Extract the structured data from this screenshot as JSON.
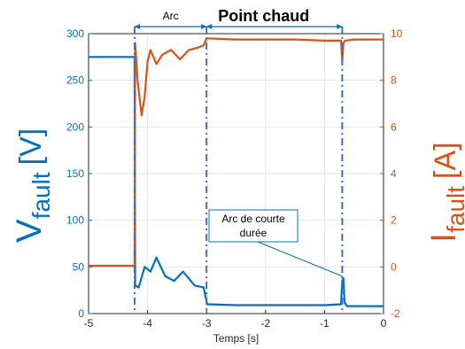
{
  "chart_data": {
    "type": "line",
    "title": "",
    "xlabel": "Temps [s]",
    "xlim": [
      -5,
      0
    ],
    "x_ticks": [
      -5,
      -4,
      -3,
      -2,
      -1,
      0
    ],
    "y_left": {
      "label_main": "V",
      "label_sub": "fault",
      "label_unit": "[V]",
      "lim": [
        0,
        300
      ],
      "ticks": [
        0,
        50,
        100,
        150,
        200,
        250,
        300
      ],
      "color": "#0072BD"
    },
    "y_right": {
      "label_main": "I",
      "label_sub": "fault",
      "label_unit": "[A]",
      "lim": [
        -2,
        10
      ],
      "ticks": [
        -2,
        0,
        2,
        4,
        6,
        8,
        10
      ],
      "color": "#D95319"
    },
    "grid": true,
    "series": [
      {
        "axis": "left",
        "color": "#0072BD",
        "x": [
          -5,
          -4.7,
          -4.22,
          -4.21,
          -4.15,
          -4.05,
          -3.95,
          -3.85,
          -3.7,
          -3.55,
          -3.4,
          -3.2,
          -3.05,
          -2.99,
          -2.5,
          -2.0,
          -1.5,
          -1.0,
          -0.72,
          -0.7,
          -0.68,
          -0.66,
          -0.62,
          -0.4,
          0
        ],
        "y": [
          275,
          275,
          275,
          30,
          28,
          50,
          45,
          60,
          40,
          35,
          45,
          30,
          28,
          10,
          9,
          9,
          9,
          9,
          10,
          35,
          38,
          12,
          8,
          8,
          8
        ]
      },
      {
        "axis": "right",
        "color": "#D95319",
        "x": [
          -5,
          -4.7,
          -4.22,
          -4.21,
          -4.17,
          -4.1,
          -4.05,
          -4.0,
          -3.95,
          -3.85,
          -3.75,
          -3.6,
          -3.45,
          -3.3,
          -3.15,
          -3.05,
          -3.0,
          -2.5,
          -2.0,
          -1.5,
          -1.0,
          -0.72,
          -0.7,
          -0.68,
          -0.65,
          -0.5,
          0
        ],
        "y": [
          0.05,
          0.05,
          0.05,
          9.6,
          8.0,
          6.5,
          7.3,
          8.8,
          9.3,
          8.7,
          9.1,
          9.3,
          8.9,
          9.3,
          9.4,
          9.5,
          9.8,
          9.75,
          9.75,
          9.75,
          9.7,
          9.7,
          8.8,
          9.6,
          9.7,
          9.75,
          9.75
        ]
      }
    ],
    "annotations": {
      "arc_label": "Arc",
      "arc_range": [
        -4.22,
        -3.0
      ],
      "point_chaud_label": "Point chaud",
      "point_chaud_range": [
        -3.0,
        -0.7
      ],
      "short_arc_text_line1": "Arc de courte",
      "short_arc_text_line2": "durée",
      "short_arc_target": [
        -0.7,
        40
      ],
      "vertical_markers": [
        -4.22,
        -3.0,
        -0.7
      ]
    }
  }
}
